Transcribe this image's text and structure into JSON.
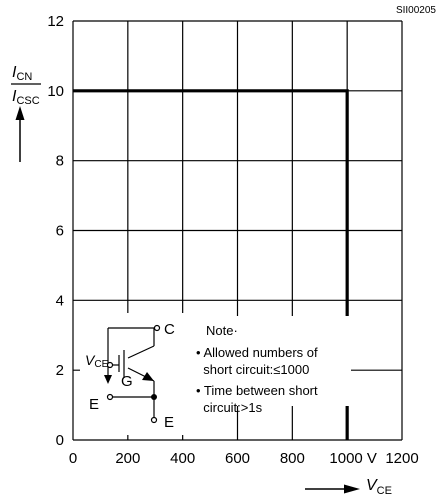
{
  "chart_data": {
    "type": "line",
    "figure_code": "SII00205",
    "x": [
      0,
      1000,
      1000
    ],
    "series": [
      {
        "values": [
          10,
          10,
          0
        ]
      }
    ],
    "xlim": [
      0,
      1200
    ],
    "ylim": [
      0,
      12
    ],
    "x_ticks": [
      "0",
      "200",
      "400",
      "600",
      "800",
      "1000",
      "1200"
    ],
    "x_unit": "V",
    "y_ticks": [
      "0",
      "2",
      "4",
      "6",
      "8",
      "10",
      "12"
    ],
    "xlabel": {
      "main": "V",
      "sub": "CE"
    },
    "ylabel": {
      "num_main": "I",
      "num_sub": "CN",
      "den_main": "I",
      "den_sub": "CSC"
    },
    "grid": true,
    "note": {
      "heading": "Note·",
      "lines": [
        "• Allowed numbers of",
        "  short circuit:≤1000",
        "• Time between short",
        "  circuit:>1s"
      ]
    },
    "circuit_labels": {
      "c": "C",
      "g": "G",
      "e_left": "E",
      "e_bottom": "E",
      "v_main": "V",
      "v_sub": "CE"
    }
  }
}
